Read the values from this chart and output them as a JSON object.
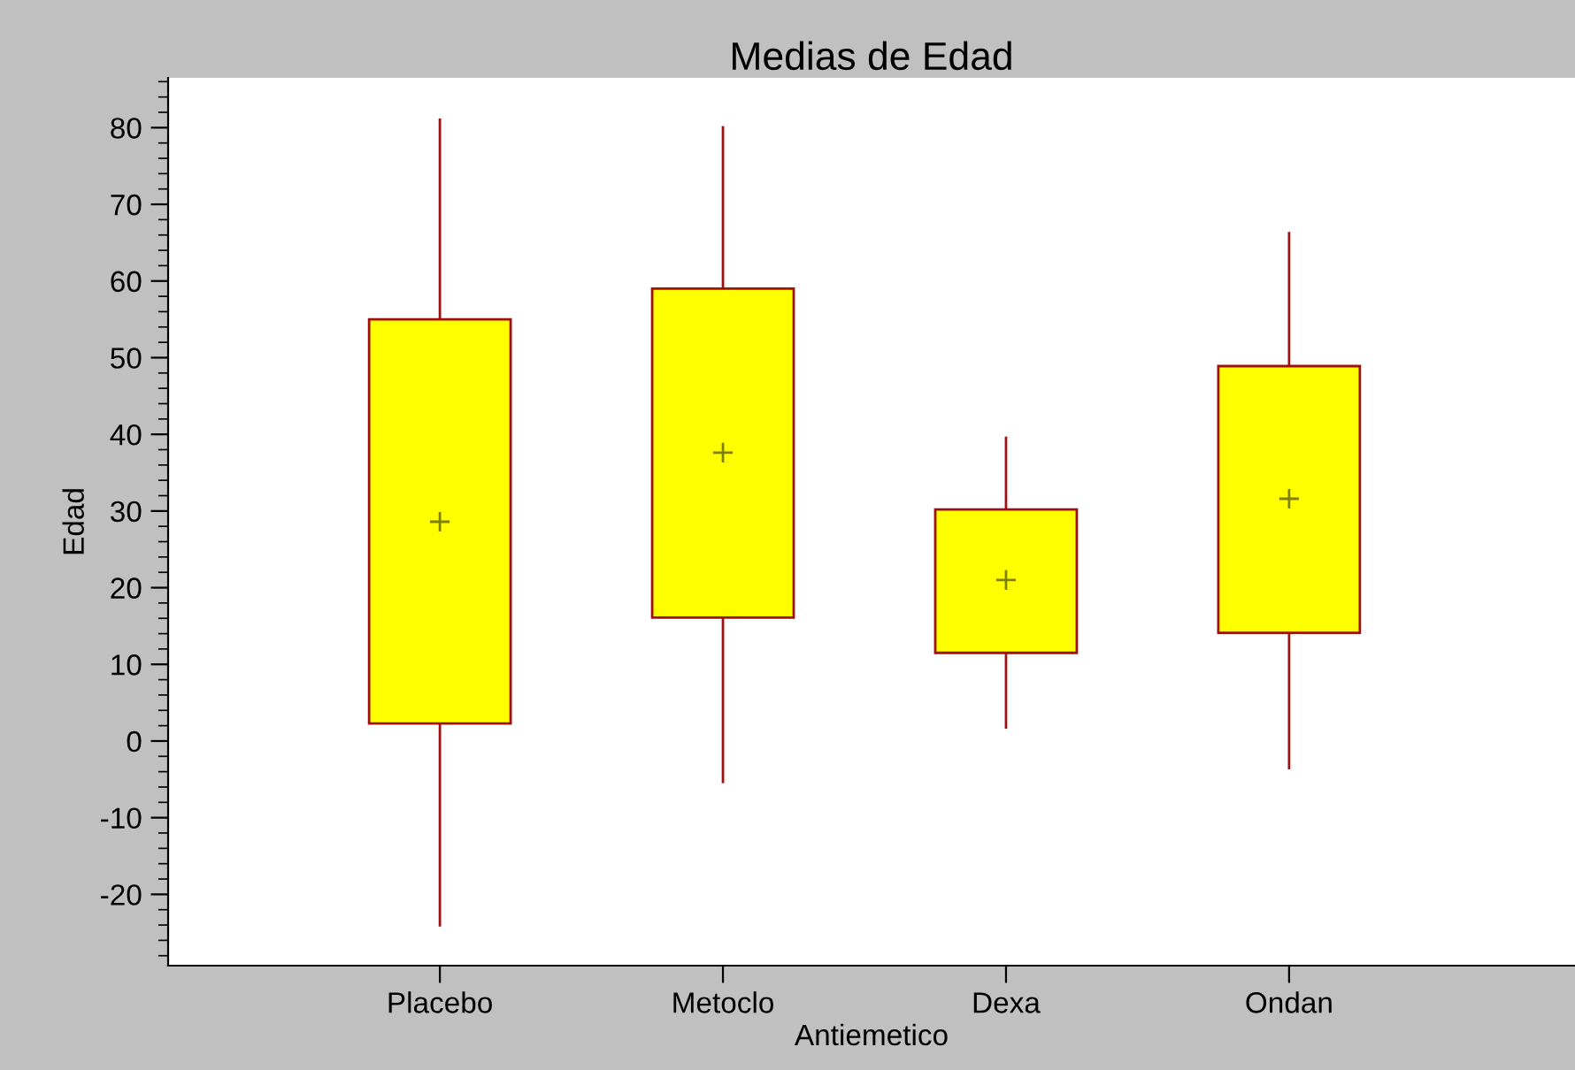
{
  "chart_data": {
    "type": "box",
    "title": "Medias de Edad",
    "xlabel": "Antiemetico",
    "ylabel": "Edad",
    "categories": [
      "Placebo",
      "Metoclo",
      "Dexa",
      "Ondan"
    ],
    "boxes": [
      {
        "low": -24.2,
        "q1": 2.3,
        "q3": 55,
        "high": 81.2,
        "mean": 28.6
      },
      {
        "low": -5.5,
        "q1": 16.1,
        "q3": 59,
        "high": 80.2,
        "mean": 37.6
      },
      {
        "low": 1.6,
        "q1": 11.5,
        "q3": 30.2,
        "high": 39.7,
        "mean": 21
      },
      {
        "low": -3.7,
        "q1": 14.1,
        "q3": 48.9,
        "high": 66.4,
        "mean": 31.6
      }
    ],
    "color": "#ffff00",
    "ylim": [
      -29.3,
      86.5
    ],
    "yticks": [
      -20,
      -10,
      0,
      10,
      20,
      30,
      40,
      50,
      60,
      70,
      80
    ],
    "grid": false
  }
}
